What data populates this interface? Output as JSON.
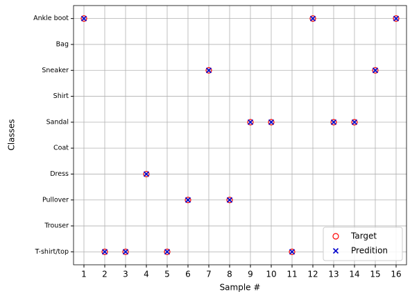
{
  "chart_data": {
    "type": "scatter",
    "x_label": "Sample #",
    "y_label": "Classes",
    "x": [
      1,
      2,
      3,
      4,
      5,
      6,
      7,
      8,
      9,
      10,
      11,
      12,
      13,
      14,
      15,
      16
    ],
    "series": [
      {
        "name": "Target",
        "color": "#ff0000",
        "marker": "circle",
        "values": [
          9,
          0,
          0,
          3,
          0,
          2,
          7,
          2,
          5,
          5,
          0,
          9,
          5,
          5,
          7,
          9
        ]
      },
      {
        "name": "Predition",
        "color": "#0000cc",
        "marker": "x",
        "values": [
          9,
          0,
          0,
          3,
          0,
          2,
          7,
          2,
          5,
          5,
          0,
          9,
          5,
          5,
          7,
          9
        ]
      }
    ],
    "xlim": [
      0.5,
      16.5
    ],
    "xticks": [
      1,
      2,
      3,
      4,
      5,
      6,
      7,
      8,
      9,
      10,
      11,
      12,
      13,
      14,
      15,
      16
    ],
    "ylim": [
      -0.5,
      9.5
    ],
    "yticks": [
      {
        "value": 0,
        "label": "T-shirt/top"
      },
      {
        "value": 1,
        "label": "Trouser"
      },
      {
        "value": 2,
        "label": "Pullover"
      },
      {
        "value": 3,
        "label": "Dress"
      },
      {
        "value": 4,
        "label": "Coat"
      },
      {
        "value": 5,
        "label": "Sandal"
      },
      {
        "value": 6,
        "label": "Shirt"
      },
      {
        "value": 7,
        "label": "Sneaker"
      },
      {
        "value": 8,
        "label": "Bag"
      },
      {
        "value": 9,
        "label": "Ankle boot"
      }
    ],
    "grid": true,
    "legend": "lower right"
  }
}
